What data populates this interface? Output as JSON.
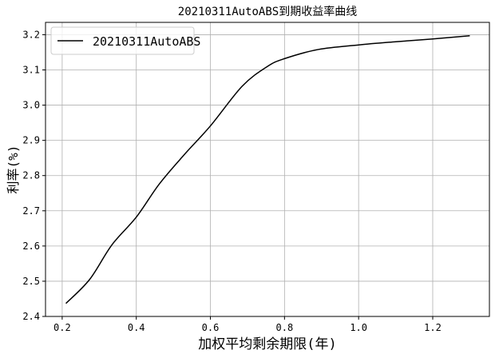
{
  "chart_data": {
    "type": "line",
    "title": "20210311AutoABS到期收益率曲线",
    "xlabel": "加权平均剩余期限(年)",
    "ylabel": "利率(%)",
    "xlim": [
      0.155,
      1.353
    ],
    "ylim": [
      2.4,
      3.235
    ],
    "xticks": [
      0.2,
      0.4,
      0.6,
      0.8,
      1.0,
      1.2
    ],
    "xtick_labels": [
      "0.2",
      "0.4",
      "0.6",
      "0.8",
      "1.0",
      "1.2"
    ],
    "yticks": [
      2.4,
      2.5,
      2.6,
      2.7,
      2.8,
      2.9,
      3.0,
      3.1,
      3.2
    ],
    "ytick_labels": [
      "2.4",
      "2.5",
      "2.6",
      "2.7",
      "2.8",
      "2.9",
      "3.0",
      "3.1",
      "3.2"
    ],
    "grid": true,
    "legend_position": "top-left",
    "series": [
      {
        "name": "20210311AutoABS",
        "color": "#000000",
        "x": [
          0.21,
          0.274,
          0.334,
          0.4,
          0.462,
          0.53,
          0.6,
          0.686,
          0.754,
          0.8,
          0.891,
          1.0,
          1.1,
          1.2,
          1.3
        ],
        "y": [
          2.437,
          2.505,
          2.603,
          2.682,
          2.776,
          2.86,
          2.941,
          3.054,
          3.11,
          3.132,
          3.158,
          3.171,
          3.18,
          3.188,
          3.197
        ]
      }
    ]
  }
}
